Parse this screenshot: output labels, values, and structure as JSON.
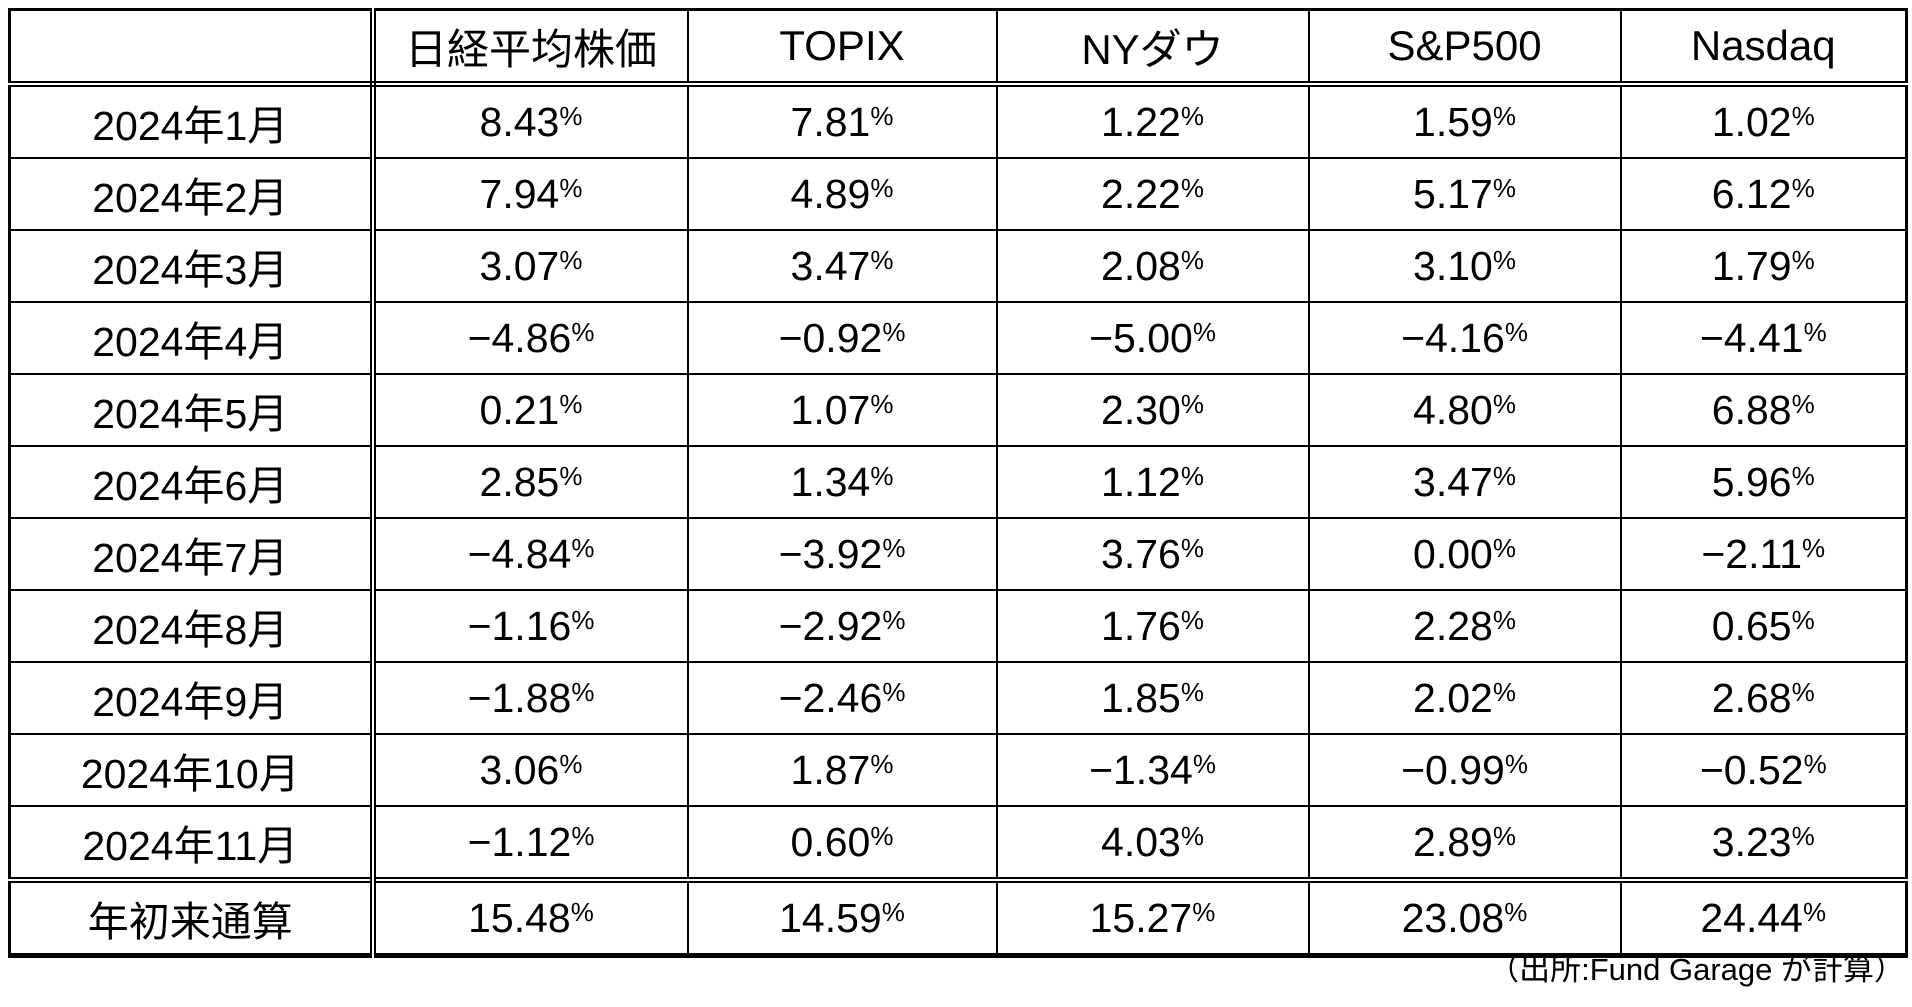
{
  "chart_data": {
    "type": "table",
    "title": "",
    "unit": "%",
    "categories": [
      "2024年1月",
      "2024年2月",
      "2024年3月",
      "2024年4月",
      "2024年5月",
      "2024年6月",
      "2024年7月",
      "2024年8月",
      "2024年9月",
      "2024年10月",
      "2024年11月",
      "年初来通算"
    ],
    "series": [
      {
        "name": "日経平均株価",
        "values": [
          8.43,
          7.94,
          3.07,
          -4.86,
          0.21,
          2.85,
          -4.84,
          -1.16,
          -1.88,
          3.06,
          -1.12,
          15.48
        ]
      },
      {
        "name": "TOPIX",
        "values": [
          7.81,
          4.89,
          3.47,
          -0.92,
          1.07,
          1.34,
          -3.92,
          -2.92,
          -2.46,
          1.87,
          0.6,
          14.59
        ]
      },
      {
        "name": "NYダウ",
        "values": [
          1.22,
          2.22,
          2.08,
          -5.0,
          2.3,
          1.12,
          3.76,
          1.76,
          1.85,
          -1.34,
          4.03,
          15.27
        ]
      },
      {
        "name": "S&P500",
        "values": [
          1.59,
          5.17,
          3.1,
          -4.16,
          4.8,
          3.47,
          0.0,
          2.28,
          2.02,
          -0.99,
          2.89,
          23.08
        ]
      },
      {
        "name": "Nasdaq",
        "values": [
          1.02,
          6.12,
          1.79,
          -4.41,
          6.88,
          5.96,
          -2.11,
          0.65,
          2.68,
          -0.52,
          3.23,
          24.44
        ]
      }
    ],
    "total_row_label": "年初来通算",
    "source_note": "（出所:Fund Garage が計算）",
    "layout": {
      "grid": true,
      "minus_glyph": "−",
      "value_format": "0.00%"
    }
  },
  "table": {
    "corner_label": ""
  },
  "colors": {
    "text": "#000000",
    "background": "#ffffff",
    "border": "#000000"
  }
}
